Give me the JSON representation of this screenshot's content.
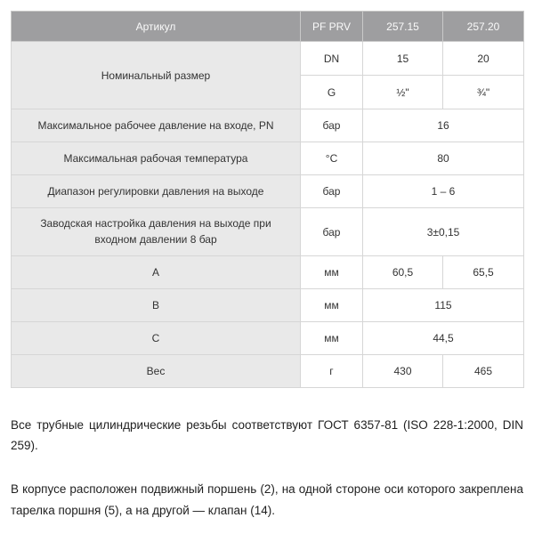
{
  "table": {
    "header": {
      "article": "Артикул",
      "series": "PF PRV",
      "model_15": "257.15",
      "model_20": "257.20"
    },
    "nominal_size": {
      "label": "Номинальный размер",
      "dn": {
        "unit": "DN",
        "v15": "15",
        "v20": "20"
      },
      "g": {
        "unit": "G",
        "v15": "½\"",
        "v20": "¾\""
      }
    },
    "max_inlet_pressure": {
      "label": "Максимальное рабочее давление на входе, PN",
      "unit": "бар",
      "value": "16"
    },
    "max_temperature": {
      "label": "Максимальная рабочая температура",
      "unit": "°C",
      "value": "80"
    },
    "outlet_adjust_range": {
      "label": "Диапазон регулировки давления на выходе",
      "unit": "бар",
      "value": "1 – 6"
    },
    "factory_setting": {
      "label": "Заводская настройка давления на выходе при входном давлении 8 бар",
      "unit": "бар",
      "value": "3±0,15"
    },
    "dim_a": {
      "label": "A",
      "unit": "мм",
      "v15": "60,5",
      "v20": "65,5"
    },
    "dim_b": {
      "label": "B",
      "unit": "мм",
      "value": "115"
    },
    "dim_c": {
      "label": "C",
      "unit": "мм",
      "value": "44,5"
    },
    "weight": {
      "label": "Вес",
      "unit": "г",
      "v15": "430",
      "v20": "465"
    }
  },
  "notes": {
    "threads": "Все трубные цилиндрические резьбы соответствуют ГОСТ 6357-81 (ISO 228-1:2000, DIN 259).",
    "piston": "В корпусе расположен подвижный поршень (2), на одной стороне оси которого закреплена тарелка поршня (5), а на другой — клапан (14)."
  },
  "colors": {
    "header_bg": "#9e9ea0",
    "header_text": "#fafafa",
    "label_bg": "#e9e9e9",
    "border": "#d6d6d6",
    "cell_text": "#333333",
    "body_text": "#1f1f1f"
  }
}
